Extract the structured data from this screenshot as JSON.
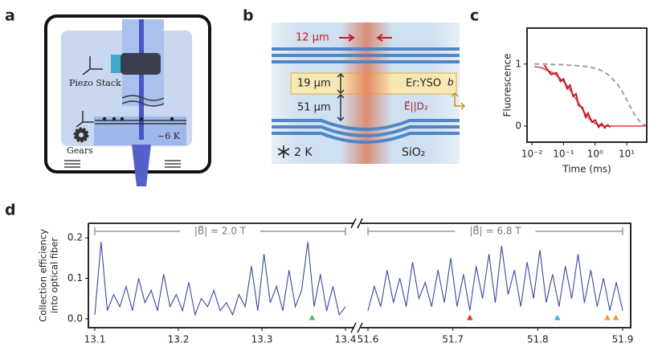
{
  "diagram_a": {
    "label": "a",
    "piezo": "Piezo Stack",
    "gears": "Gears",
    "temperature": "~6 K"
  },
  "diagram_b": {
    "label": "b",
    "width": "12 µm",
    "crystal_thickness": "19 µm",
    "gap": "51 µm",
    "crystal": "Er:YSO",
    "axis": "b",
    "field": "E⃗||D₂",
    "temperature": "2 K",
    "substrate": "SiO₂"
  },
  "chart_data": [
    {
      "type": "line",
      "label": "c",
      "xlabel": "Time (ms)",
      "ylabel": "Fluorescence",
      "xlog": true,
      "xlim": [
        0.007,
        43
      ],
      "ylim": [
        -0.26,
        1.58
      ],
      "xticks": [
        {
          "value": 0.01,
          "label": "10⁻²"
        },
        {
          "value": 0.1,
          "label": "10⁻¹"
        },
        {
          "value": 1,
          "label": "10⁰"
        },
        {
          "value": 10,
          "label": "10¹"
        }
      ],
      "yticks": [
        0,
        1
      ],
      "series": [
        {
          "color": "#9e9e9e",
          "style": "dashed",
          "x": [
            0.012,
            0.02,
            0.03,
            0.05,
            0.07,
            0.1,
            0.15,
            0.2,
            0.3,
            0.5,
            0.7,
            1,
            1.5,
            2,
            3,
            5,
            7,
            10,
            15,
            20,
            30,
            40
          ],
          "values": [
            1,
            1,
            1,
            0.99,
            0.99,
            0.99,
            0.98,
            0.98,
            0.97,
            0.96,
            0.95,
            0.93,
            0.9,
            0.87,
            0.8,
            0.68,
            0.57,
            0.42,
            0.25,
            0.14,
            0.04,
            0.01
          ]
        },
        {
          "color": "#e45757",
          "style": "solid",
          "x": [
            0.012,
            0.02,
            0.03,
            0.05,
            0.07,
            0.1,
            0.15,
            0.2,
            0.3,
            0.5,
            0.7,
            1,
            1.5,
            2,
            3,
            5,
            7,
            10,
            15,
            20,
            30,
            40
          ],
          "values": [
            0.96,
            0.94,
            0.9,
            0.85,
            0.79,
            0.72,
            0.61,
            0.51,
            0.37,
            0.19,
            0.1,
            0.04,
            0.01,
            0,
            0,
            0,
            0,
            0,
            0,
            0,
            0,
            0
          ]
        },
        {
          "color": "#c0141c",
          "style": "solid",
          "x": [
            0.025,
            0.04,
            0.06,
            0.08,
            0.1,
            0.13,
            0.16,
            0.2,
            0.25,
            0.3,
            0.4,
            0.5,
            0.6,
            0.8,
            1,
            1.3,
            1.6,
            2,
            2.5,
            3
          ],
          "values": [
            0.98,
            0.83,
            0.86,
            0.72,
            0.76,
            0.6,
            0.66,
            0.48,
            0.52,
            0.33,
            0.3,
            0.14,
            0.21,
            0.06,
            0.1,
            -0.02,
            0.04,
            -0.03,
            0.02,
            -0.02
          ]
        }
      ]
    },
    {
      "type": "line",
      "label": "d",
      "ylabel": [
        "Collection efficiency",
        "into optical fiber"
      ],
      "annotation": "|B⃗| = 2.0 T",
      "xlim": [
        13.1,
        13.4
      ],
      "ylim": [
        -0.022,
        0.236
      ],
      "xticks": [
        13.1,
        13.2,
        13.3,
        13.4
      ],
      "yticks": [
        {
          "value": 0,
          "label": "0.0"
        },
        0.1,
        0.2
      ],
      "color": "#3a48a0",
      "x": [
        13.1,
        13.1075,
        13.115,
        13.1225,
        13.13,
        13.1375,
        13.145,
        13.1525,
        13.16,
        13.1675,
        13.175,
        13.1825,
        13.19,
        13.1975,
        13.205,
        13.2125,
        13.22,
        13.2275,
        13.235,
        13.2425,
        13.25,
        13.2575,
        13.265,
        13.2725,
        13.28,
        13.2875,
        13.295,
        13.3025,
        13.31,
        13.3175,
        13.325,
        13.3325,
        13.34,
        13.3475,
        13.355,
        13.3625,
        13.37,
        13.3775,
        13.385,
        13.3925,
        13.4
      ],
      "values": [
        0.01,
        0.19,
        0.02,
        0.06,
        0.03,
        0.08,
        0.02,
        0.1,
        0.04,
        0.07,
        0.02,
        0.11,
        0.03,
        0.06,
        0.02,
        0.09,
        0.01,
        0.05,
        0.03,
        0.07,
        0.02,
        0.04,
        0.01,
        0.06,
        0.03,
        0.13,
        0.02,
        0.16,
        0.04,
        0.08,
        0.02,
        0.12,
        0.03,
        0.07,
        0.19,
        0.03,
        0.11,
        0.02,
        0.08,
        0.01,
        0.03
      ],
      "markers": [
        {
          "x": 13.36,
          "color": "#5cb85c"
        }
      ]
    },
    {
      "type": "line",
      "annotation": "|B⃗| = 6.8 T",
      "xlim": [
        51.6,
        51.9
      ],
      "ylim": [
        -0.022,
        0.236
      ],
      "xticks": [
        51.6,
        51.7,
        51.8,
        51.9
      ],
      "color": "#3a48a0",
      "x": [
        51.6,
        51.6075,
        51.615,
        51.6225,
        51.63,
        51.6375,
        51.645,
        51.6525,
        51.66,
        51.6675,
        51.675,
        51.6825,
        51.69,
        51.6975,
        51.705,
        51.7125,
        51.72,
        51.7275,
        51.735,
        51.7425,
        51.75,
        51.7575,
        51.765,
        51.7725,
        51.78,
        51.7875,
        51.795,
        51.8025,
        51.81,
        51.8175,
        51.825,
        51.8325,
        51.84,
        51.8475,
        51.855,
        51.8625,
        51.87,
        51.8775,
        51.885,
        51.8925,
        51.9
      ],
      "values": [
        0.02,
        0.08,
        0.03,
        0.12,
        0.04,
        0.1,
        0.03,
        0.14,
        0.05,
        0.09,
        0.03,
        0.12,
        0.04,
        0.15,
        0.03,
        0.11,
        0.02,
        0.13,
        0.05,
        0.16,
        0.04,
        0.18,
        0.06,
        0.12,
        0.03,
        0.14,
        0.05,
        0.17,
        0.04,
        0.11,
        0.03,
        0.13,
        0.05,
        0.16,
        0.04,
        0.12,
        0.03,
        0.1,
        0.02,
        0.09,
        0.02
      ],
      "markers": [
        {
          "x": 51.72,
          "color": "#d9342b"
        },
        {
          "x": 51.823,
          "color": "#3fb6d8"
        },
        {
          "x": 51.882,
          "color": "#f0952b"
        },
        {
          "x": 51.892,
          "color": "#f0952b"
        }
      ]
    }
  ]
}
